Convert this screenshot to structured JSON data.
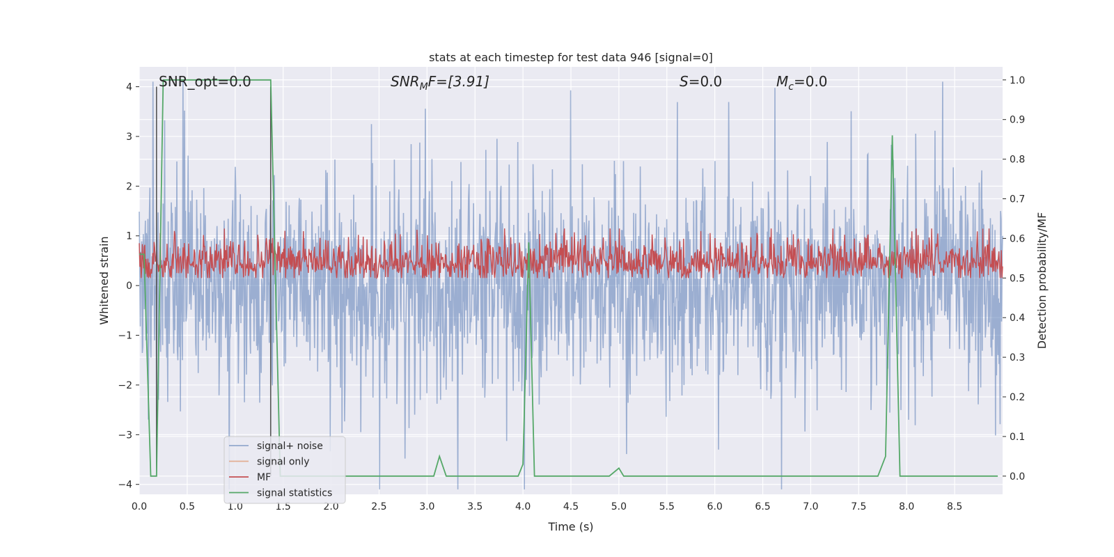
{
  "chart_data": {
    "type": "line",
    "title": "stats at each timestep for test data 946 [signal=0]",
    "xlabel": "Time (s)",
    "ylabel": "Whitened strain",
    "y2label": "Detection probability/MF",
    "xlim": [
      0.0,
      9.0
    ],
    "ylim": [
      -4.2,
      4.4
    ],
    "y2lim": [
      -0.046,
      1.033
    ],
    "xticks": [
      "0.0",
      "0.5",
      "1.0",
      "1.5",
      "2.0",
      "2.5",
      "3.0",
      "3.5",
      "4.0",
      "4.5",
      "5.0",
      "5.5",
      "6.0",
      "6.5",
      "7.0",
      "7.5",
      "8.0",
      "8.5"
    ],
    "yticks": [
      "4",
      "3",
      "2",
      "1",
      "0",
      "−1",
      "−2",
      "−3",
      "−4"
    ],
    "y2ticks": [
      "1.0",
      "0.9",
      "0.8",
      "0.7",
      "0.6",
      "0.5",
      "0.4",
      "0.3",
      "0.2",
      "0.1",
      "0.0"
    ],
    "grid": true,
    "legend_position": "lower left",
    "annotations": {
      "snr_opt": "SNR_opt=0.0",
      "snr_mf_pre": "SNR",
      "snr_mf_sub": "M",
      "snr_mf_post": "F=[3.91]",
      "s_sym": "S",
      "s_val": "=0.0",
      "mc_sym": "M",
      "mc_sub": "c",
      "mc_val": "=0.0"
    },
    "series": [
      {
        "name": "signal+ noise",
        "color": "#4c72b0",
        "axis": "left",
        "description_level": "noise band roughly ±1.6 with spikes to ±4"
      },
      {
        "name": "signal only",
        "color": "#dd8452",
        "axis": "left",
        "values": []
      },
      {
        "name": "MF",
        "color": "#c44e52",
        "axis": "right",
        "range": [
          0.5,
          0.62
        ]
      },
      {
        "name": "signal statistics",
        "color": "#55a868",
        "axis": "right",
        "x": [
          0.0,
          0.05,
          0.12,
          0.18,
          0.25,
          0.3,
          0.5,
          1.0,
          1.3,
          1.37,
          1.42,
          1.47,
          1.5,
          3.0,
          3.07,
          3.13,
          3.2,
          3.95,
          4.0,
          4.06,
          4.12,
          4.9,
          5.0,
          5.05,
          7.7,
          7.78,
          7.85,
          7.93,
          8.95
        ],
        "y": [
          0.56,
          0.56,
          0.0,
          0.0,
          1.0,
          1.0,
          1.0,
          1.0,
          1.0,
          1.0,
          0.5,
          0.0,
          0.0,
          0.0,
          0.0,
          0.05,
          0.0,
          0.0,
          0.03,
          0.59,
          0.0,
          0.0,
          0.02,
          0.0,
          0.0,
          0.05,
          0.86,
          0.0,
          0.0
        ]
      }
    ],
    "vlines": [
      0.18,
      1.37
    ],
    "vline_color": "#555555"
  },
  "legend": {
    "items": [
      {
        "label": "signal+ noise",
        "color": "#4c72b0"
      },
      {
        "label": "signal only",
        "color": "#dd8452"
      },
      {
        "label": "MF",
        "color": "#c44e52"
      },
      {
        "label": "signal statistics",
        "color": "#55a868"
      }
    ]
  },
  "colors": {
    "axes_bg": "#eaeaf2",
    "grid": "#ffffff",
    "noise": "#4c72b0",
    "mf": "#c44e52",
    "stats": "#55a868"
  }
}
